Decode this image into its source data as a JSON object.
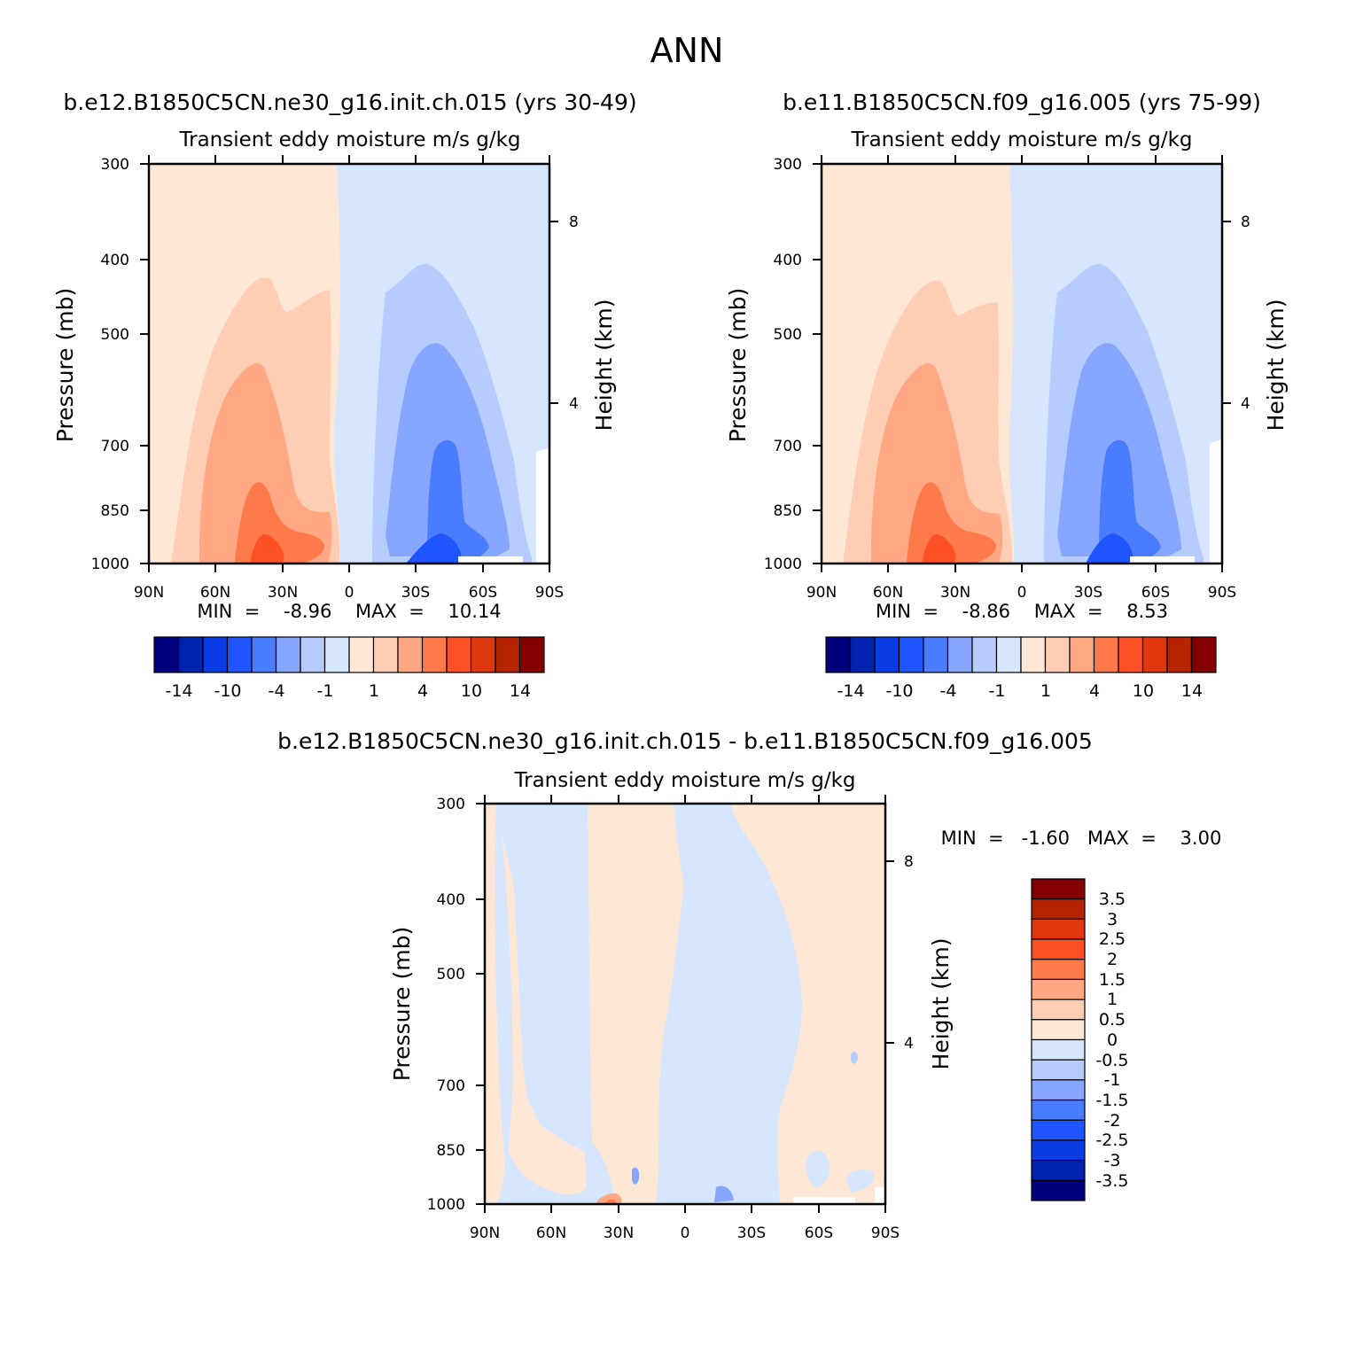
{
  "figure_title": "ANN",
  "panels": [
    {
      "title": "b.e12.B1850C5CN.ne30_g16.init.ch.015 (yrs 30-49)",
      "subtitle": "Transient  eddy  moisture m/s  g/kg",
      "ylabel": "Pressure  (mb)",
      "ylabel_right": "Height  (km)",
      "stats": "MIN  =    -8.96    MAX  =    10.14"
    },
    {
      "title": "b.e11.B1850C5CN.f09_g16.005 (yrs 75-99)",
      "subtitle": "Transient  eddy  moisture m/s  g/kg",
      "ylabel": "Pressure  (mb)",
      "ylabel_right": "Height  (km)",
      "stats": "MIN  =    -8.86    MAX  =    8.53"
    },
    {
      "title": "b.e12.B1850C5CN.ne30_g16.init.ch.015 - b.e11.B1850C5CN.f09_g16.005",
      "subtitle": "Transient  eddy  moisture m/s  g/kg",
      "ylabel": "Pressure  (mb)",
      "ylabel_right": "Height  (km)",
      "stats": "MIN  =   -1.60   MAX  =    3.00"
    }
  ],
  "chart_data": [
    {
      "type": "heatmap",
      "title": "b.e12.B1850C5CN.ne30_g16.init.ch.015 (yrs 30-49)",
      "x_ticks": [
        "90N",
        "60N",
        "30N",
        "0",
        "30S",
        "60S",
        "90S"
      ],
      "y_ticks": [
        "300",
        "400",
        "500",
        "700",
        "850",
        "1000"
      ],
      "y_right_ticks": [
        "8",
        "4"
      ],
      "ylim": [
        1000,
        300
      ],
      "min": -8.96,
      "max": 10.14,
      "colorbar_levels": [
        "-14",
        "-10",
        "-4",
        "-1",
        "1",
        "4",
        "10",
        "14"
      ]
    },
    {
      "type": "heatmap",
      "title": "b.e11.B1850C5CN.f09_g16.005 (yrs 75-99)",
      "x_ticks": [
        "90N",
        "60N",
        "30N",
        "0",
        "30S",
        "60S",
        "90S"
      ],
      "y_ticks": [
        "300",
        "400",
        "500",
        "700",
        "850",
        "1000"
      ],
      "y_right_ticks": [
        "8",
        "4"
      ],
      "ylim": [
        1000,
        300
      ],
      "min": -8.86,
      "max": 8.53,
      "colorbar_levels": [
        "-14",
        "-10",
        "-4",
        "-1",
        "1",
        "4",
        "10",
        "14"
      ]
    },
    {
      "type": "heatmap",
      "title": "b.e12.B1850C5CN.ne30_g16.init.ch.015 - b.e11.B1850C5CN.f09_g16.005",
      "x_ticks": [
        "90N",
        "60N",
        "30N",
        "0",
        "30S",
        "60S",
        "90S"
      ],
      "y_ticks": [
        "300",
        "400",
        "500",
        "700",
        "850",
        "1000"
      ],
      "y_right_ticks": [
        "8",
        "4"
      ],
      "ylim": [
        1000,
        300
      ],
      "min": -1.6,
      "max": 3.0,
      "colorbar_levels": [
        "3.5",
        "3",
        "2.5",
        "2",
        "1.5",
        "1",
        "0.5",
        "0",
        "-0.5",
        "-1",
        "-1.5",
        "-2",
        "-2.5",
        "-3",
        "-3.5"
      ]
    }
  ],
  "colors": {
    "scale": [
      "#00007f",
      "#0022b0",
      "#0a3ce6",
      "#1e55ff",
      "#4a7cff",
      "#86a6ff",
      "#b6ccff",
      "#d6e6ff",
      "#ffe7d6",
      "#ffcdb4",
      "#ffa883",
      "#ff7a4a",
      "#ff5025",
      "#e0380e",
      "#b52400",
      "#840000"
    ]
  }
}
